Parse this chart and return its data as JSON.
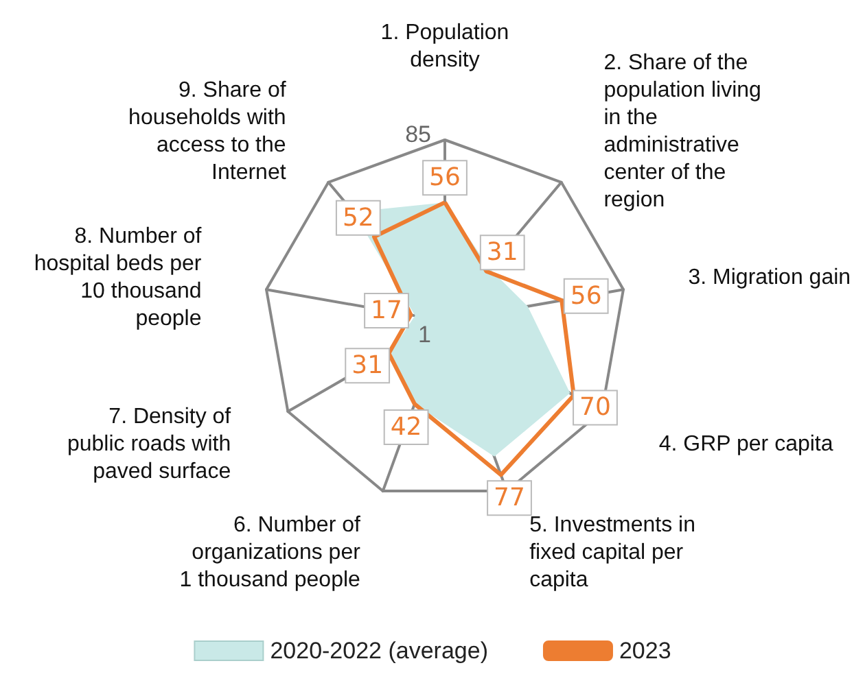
{
  "chart_data": {
    "type": "radar",
    "categories": [
      "1. Population density",
      "2. Share of the population living in the administrative center of the region",
      "3. Migration gain",
      "4. GRP per capita",
      "5. Investments in fixed capital per capita",
      "6. Number of organizations per 1 thousand people",
      "7. Density of public roads with paved surface",
      "8. Number of hospital beds per 10 thousand people",
      "9. Share of households with access to the Internet"
    ],
    "series": [
      {
        "name": "2020-2022 (average)",
        "type": "area",
        "color": "#c9e9e7",
        "values": [
          56,
          33,
          40,
          68,
          68,
          42,
          30,
          15,
          67
        ]
      },
      {
        "name": "2023",
        "color": "#ed7d31",
        "values": [
          56,
          31,
          56,
          70,
          77,
          42,
          31,
          17,
          52
        ],
        "value_labels": [
          "56",
          "31",
          "56",
          "70",
          "77",
          "42",
          "31",
          "17",
          "52"
        ]
      }
    ],
    "ylim": [
      1,
      85
    ],
    "yticks": [
      1,
      85
    ],
    "legend": "bottom",
    "marker": "none"
  }
}
